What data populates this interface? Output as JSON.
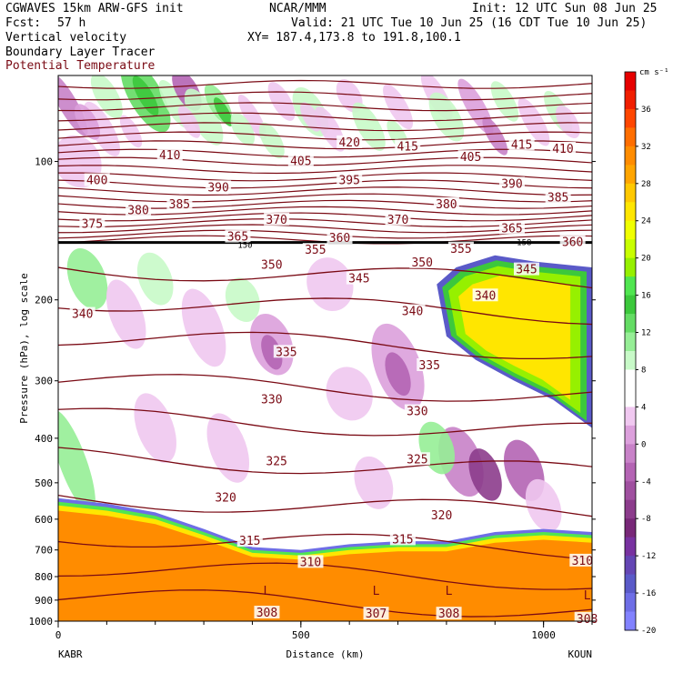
{
  "header": {
    "model": "CGWAVES 15km ARW-GFS init",
    "forecast_label": "Fcst:",
    "forecast_hours": "57 h",
    "institution": "NCAR/MMM",
    "init_time": "Init: 12 UTC Sun 08 Jun 25",
    "valid_time": "Valid: 21 UTC Tue 10 Jun 25 (16 CDT Tue 10 Jun 25)",
    "xy": "XY= 187.4,173.8 to 191.8,100.1",
    "field1": "Vertical velocity",
    "field2": "Boundary Layer Tracer",
    "field3": "Potential Temperature",
    "field3_color": "#7a0a14"
  },
  "chart_data": {
    "type": "heatmap",
    "xlabel": "Distance (km)",
    "ylabel": "Pressure (hPa), log scale",
    "x_range": [
      0,
      1100
    ],
    "y_range": [
      1000,
      65
    ],
    "y_scale": "log",
    "x_ticks": [
      0,
      500,
      1000
    ],
    "y_ticks": [
      100,
      200,
      300,
      400,
      500,
      600,
      700,
      800,
      900,
      1000
    ],
    "x_endpoint_labels": [
      "KABR",
      "KOUN"
    ],
    "colorbar": {
      "unit": "cm s⁻¹",
      "ticks": [
        36,
        32,
        28,
        24,
        20,
        16,
        12,
        8,
        4,
        0,
        -4,
        -8,
        -12,
        -16,
        -20
      ],
      "colors": [
        "#e60000",
        "#f01e00",
        "#ff4600",
        "#ff6e00",
        "#ff8c00",
        "#ffa500",
        "#ffc800",
        "#ffe600",
        "#f0ff00",
        "#c8ff00",
        "#96f000",
        "#50e650",
        "#3cc83c",
        "#64dc64",
        "#96ee96",
        "#c8fac8",
        "#ffffff",
        "#ffffff",
        "#f0c8f0",
        "#dca0dc",
        "#c882c8",
        "#b464b4",
        "#a050a0",
        "#8c3c8c",
        "#782878",
        "#7832a0",
        "#6446b4",
        "#5a5ac8",
        "#6e6ee6",
        "#8282ff"
      ]
    },
    "theta_labels": [
      {
        "value": "420",
        "x": 600,
        "p": 91
      },
      {
        "value": "415",
        "x": 720,
        "p": 93
      },
      {
        "value": "415",
        "x": 955,
        "p": 92
      },
      {
        "value": "410",
        "x": 230,
        "p": 97
      },
      {
        "value": "410",
        "x": 1040,
        "p": 94
      },
      {
        "value": "405",
        "x": 500,
        "p": 100
      },
      {
        "value": "405",
        "x": 850,
        "p": 98
      },
      {
        "value": "400",
        "x": 80,
        "p": 110
      },
      {
        "value": "395",
        "x": 600,
        "p": 110
      },
      {
        "value": "390",
        "x": 330,
        "p": 114
      },
      {
        "value": "390",
        "x": 935,
        "p": 112
      },
      {
        "value": "385",
        "x": 250,
        "p": 124
      },
      {
        "value": "385",
        "x": 1030,
        "p": 120
      },
      {
        "value": "380",
        "x": 165,
        "p": 128
      },
      {
        "value": "380",
        "x": 800,
        "p": 124
      },
      {
        "value": "375",
        "x": 70,
        "p": 137
      },
      {
        "value": "370",
        "x": 450,
        "p": 134
      },
      {
        "value": "370",
        "x": 700,
        "p": 134
      },
      {
        "value": "365",
        "x": 370,
        "p": 146
      },
      {
        "value": "365",
        "x": 935,
        "p": 140
      },
      {
        "value": "360",
        "x": 580,
        "p": 147
      },
      {
        "value": "360",
        "x": 1060,
        "p": 150
      },
      {
        "value": "355",
        "x": 530,
        "p": 156
      },
      {
        "value": "355",
        "x": 830,
        "p": 155
      },
      {
        "value": "350",
        "x": 440,
        "p": 168
      },
      {
        "value": "350",
        "x": 750,
        "p": 166
      },
      {
        "value": "345",
        "x": 620,
        "p": 180
      },
      {
        "value": "345",
        "x": 965,
        "p": 172
      },
      {
        "value": "340",
        "x": 50,
        "p": 215
      },
      {
        "value": "340",
        "x": 730,
        "p": 212
      },
      {
        "value": "340",
        "x": 880,
        "p": 196
      },
      {
        "value": "335",
        "x": 470,
        "p": 260
      },
      {
        "value": "335",
        "x": 765,
        "p": 278
      },
      {
        "value": "330",
        "x": 440,
        "p": 330
      },
      {
        "value": "330",
        "x": 740,
        "p": 350
      },
      {
        "value": "325",
        "x": 450,
        "p": 450
      },
      {
        "value": "325",
        "x": 740,
        "p": 445
      },
      {
        "value": "320",
        "x": 345,
        "p": 540
      },
      {
        "value": "320",
        "x": 790,
        "p": 590
      },
      {
        "value": "315",
        "x": 395,
        "p": 670
      },
      {
        "value": "315",
        "x": 710,
        "p": 665
      },
      {
        "value": "310",
        "x": 520,
        "p": 745
      },
      {
        "value": "310",
        "x": 1080,
        "p": 740
      },
      {
        "value": "308",
        "x": 430,
        "p": 960
      },
      {
        "value": "307",
        "x": 655,
        "p": 965
      },
      {
        "value": "308",
        "x": 805,
        "p": 965
      },
      {
        "value": "308",
        "x": 1090,
        "p": 990
      }
    ],
    "low_markers": [
      {
        "label": "L",
        "x": 430,
        "p": 860
      },
      {
        "label": "L",
        "x": 655,
        "p": 860
      },
      {
        "label": "L",
        "x": 805,
        "p": 860
      },
      {
        "label": "L",
        "x": 1090,
        "p": 880
      }
    ],
    "small_labels": [
      {
        "value": "150",
        "x": 385,
        "p": 152
      },
      {
        "value": "158",
        "x": 960,
        "p": 150
      }
    ]
  }
}
